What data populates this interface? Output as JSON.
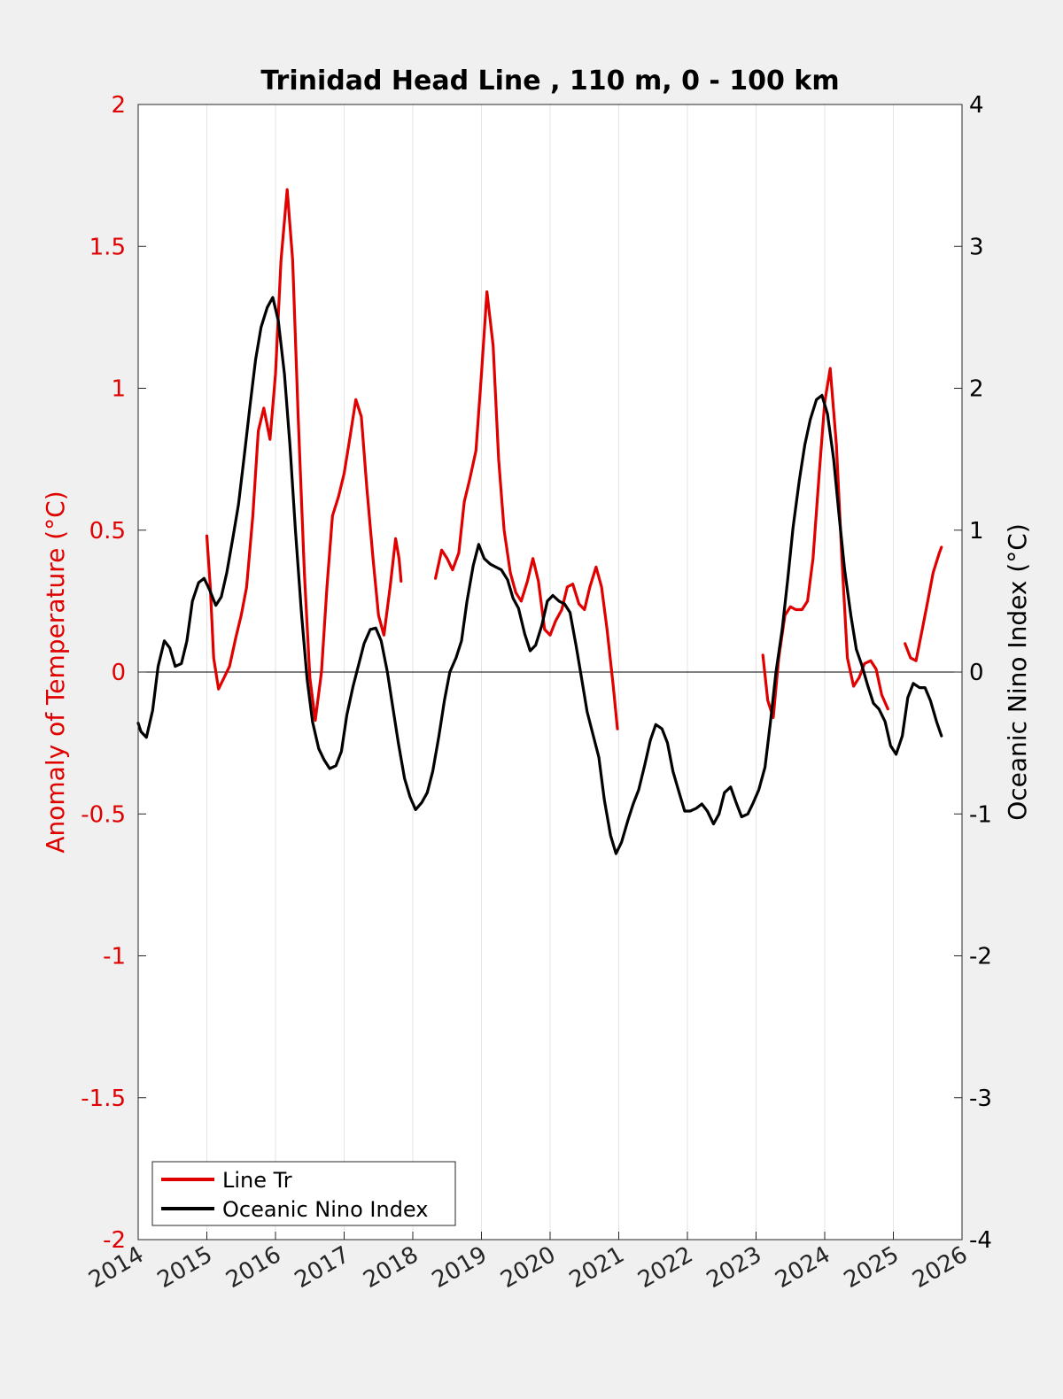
{
  "chart_data": {
    "type": "line",
    "title": "Trinidad Head Line , 110 m, 0 - 100 km",
    "xlabel": "",
    "ylabel_left": "Anomaly of Temperature (°C)",
    "ylabel_right": "Oceanic Nino Index (°C)",
    "xlim": [
      2014,
      2026
    ],
    "ylim_left": [
      -2,
      2
    ],
    "ylim_right": [
      -4,
      4
    ],
    "x_ticks": [
      "2014",
      "2015",
      "2016",
      "2017",
      "2018",
      "2019",
      "2020",
      "2021",
      "2022",
      "2023",
      "2024",
      "2025",
      "2026"
    ],
    "y_ticks_left": [
      "2",
      "1.5",
      "1",
      "0.5",
      "0",
      "-0.5",
      "-1",
      "-1.5",
      "-2"
    ],
    "y_ticks_right": [
      "4",
      "3",
      "2",
      "1",
      "0",
      "-1",
      "-2",
      "-3",
      "-4"
    ],
    "grid": "vertical",
    "zero_line": true,
    "legend_position": "bottom-left",
    "colors": {
      "line_tr": "#e00000",
      "oni": "#000000",
      "left_axis": "#e00000",
      "right_axis": "#000000",
      "background": "#f0f0f0",
      "plot_bg": "#ffffff"
    },
    "series": [
      {
        "name": "Line Tr",
        "axis": "left",
        "segments": [
          [
            [
              2015.0,
              0.48
            ],
            [
              2015.05,
              0.3
            ],
            [
              2015.1,
              0.05
            ],
            [
              2015.17,
              -0.06
            ],
            [
              2015.25,
              -0.02
            ],
            [
              2015.33,
              0.02
            ],
            [
              2015.42,
              0.12
            ],
            [
              2015.5,
              0.2
            ],
            [
              2015.58,
              0.3
            ],
            [
              2015.67,
              0.55
            ],
            [
              2015.75,
              0.85
            ],
            [
              2015.83,
              0.93
            ],
            [
              2015.92,
              0.82
            ],
            [
              2016.0,
              1.05
            ],
            [
              2016.08,
              1.45
            ],
            [
              2016.17,
              1.7
            ],
            [
              2016.25,
              1.45
            ],
            [
              2016.33,
              0.9
            ],
            [
              2016.42,
              0.35
            ],
            [
              2016.5,
              -0.02
            ],
            [
              2016.58,
              -0.17
            ],
            [
              2016.67,
              0.0
            ],
            [
              2016.75,
              0.3
            ],
            [
              2016.83,
              0.55
            ],
            [
              2016.92,
              0.62
            ],
            [
              2017.0,
              0.7
            ],
            [
              2017.08,
              0.82
            ],
            [
              2017.17,
              0.96
            ],
            [
              2017.25,
              0.9
            ],
            [
              2017.33,
              0.65
            ],
            [
              2017.42,
              0.4
            ],
            [
              2017.5,
              0.2
            ],
            [
              2017.58,
              0.13
            ],
            [
              2017.67,
              0.3
            ],
            [
              2017.75,
              0.47
            ],
            [
              2017.8,
              0.4
            ],
            [
              2017.83,
              0.32
            ]
          ],
          [
            [
              2018.33,
              0.33
            ],
            [
              2018.42,
              0.43
            ],
            [
              2018.5,
              0.4
            ],
            [
              2018.58,
              0.36
            ],
            [
              2018.67,
              0.42
            ],
            [
              2018.75,
              0.6
            ],
            [
              2018.83,
              0.68
            ],
            [
              2018.92,
              0.78
            ],
            [
              2019.0,
              1.05
            ],
            [
              2019.08,
              1.34
            ],
            [
              2019.17,
              1.15
            ],
            [
              2019.25,
              0.75
            ],
            [
              2019.33,
              0.5
            ],
            [
              2019.42,
              0.35
            ],
            [
              2019.5,
              0.28
            ],
            [
              2019.58,
              0.25
            ],
            [
              2019.67,
              0.32
            ],
            [
              2019.75,
              0.4
            ],
            [
              2019.83,
              0.32
            ],
            [
              2019.92,
              0.15
            ],
            [
              2020.0,
              0.13
            ],
            [
              2020.08,
              0.18
            ],
            [
              2020.17,
              0.22
            ],
            [
              2020.25,
              0.3
            ],
            [
              2020.33,
              0.31
            ],
            [
              2020.42,
              0.24
            ],
            [
              2020.5,
              0.22
            ],
            [
              2020.58,
              0.3
            ],
            [
              2020.67,
              0.37
            ],
            [
              2020.75,
              0.3
            ],
            [
              2020.83,
              0.15
            ],
            [
              2020.92,
              -0.05
            ],
            [
              2020.98,
              -0.2
            ]
          ],
          [
            [
              2023.1,
              0.06
            ],
            [
              2023.17,
              -0.1
            ],
            [
              2023.25,
              -0.16
            ],
            [
              2023.33,
              0.05
            ],
            [
              2023.42,
              0.2
            ],
            [
              2023.5,
              0.23
            ],
            [
              2023.58,
              0.22
            ],
            [
              2023.67,
              0.22
            ],
            [
              2023.75,
              0.25
            ],
            [
              2023.83,
              0.4
            ],
            [
              2023.92,
              0.7
            ],
            [
              2024.0,
              0.95
            ],
            [
              2024.08,
              1.07
            ],
            [
              2024.17,
              0.8
            ],
            [
              2024.25,
              0.4
            ],
            [
              2024.33,
              0.05
            ],
            [
              2024.42,
              -0.05
            ],
            [
              2024.5,
              -0.02
            ],
            [
              2024.58,
              0.03
            ],
            [
              2024.67,
              0.04
            ],
            [
              2024.75,
              0.01
            ],
            [
              2024.83,
              -0.08
            ],
            [
              2024.92,
              -0.13
            ]
          ],
          [
            [
              2025.17,
              0.1
            ],
            [
              2025.25,
              0.05
            ],
            [
              2025.33,
              0.04
            ],
            [
              2025.42,
              0.15
            ],
            [
              2025.5,
              0.25
            ],
            [
              2025.58,
              0.35
            ],
            [
              2025.67,
              0.42
            ],
            [
              2025.7,
              0.44
            ]
          ]
        ]
      },
      {
        "name": "Oceanic Nino Index",
        "axis": "right",
        "segments": [
          [
            [
              2014.0,
              -0.36
            ],
            [
              2014.04,
              -0.42
            ],
            [
              2014.12,
              -0.46
            ],
            [
              2014.21,
              -0.27
            ],
            [
              2014.29,
              0.04
            ],
            [
              2014.38,
              0.22
            ],
            [
              2014.46,
              0.17
            ],
            [
              2014.54,
              0.04
            ],
            [
              2014.63,
              0.06
            ],
            [
              2014.71,
              0.22
            ],
            [
              2014.79,
              0.5
            ],
            [
              2014.88,
              0.63
            ],
            [
              2014.96,
              0.66
            ],
            [
              2015.04,
              0.58
            ],
            [
              2015.13,
              0.47
            ],
            [
              2015.21,
              0.53
            ],
            [
              2015.29,
              0.7
            ],
            [
              2015.38,
              0.95
            ],
            [
              2015.46,
              1.18
            ],
            [
              2015.54,
              1.5
            ],
            [
              2015.63,
              1.88
            ],
            [
              2015.71,
              2.2
            ],
            [
              2015.79,
              2.43
            ],
            [
              2015.88,
              2.57
            ],
            [
              2015.96,
              2.64
            ],
            [
              2016.04,
              2.48
            ],
            [
              2016.13,
              2.1
            ],
            [
              2016.21,
              1.6
            ],
            [
              2016.29,
              1.0
            ],
            [
              2016.38,
              0.4
            ],
            [
              2016.46,
              -0.05
            ],
            [
              2016.54,
              -0.35
            ],
            [
              2016.63,
              -0.54
            ],
            [
              2016.71,
              -0.62
            ],
            [
              2016.79,
              -0.68
            ],
            [
              2016.88,
              -0.66
            ],
            [
              2016.96,
              -0.56
            ],
            [
              2017.04,
              -0.3
            ],
            [
              2017.13,
              -0.1
            ],
            [
              2017.21,
              0.05
            ],
            [
              2017.29,
              0.2
            ],
            [
              2017.38,
              0.3
            ],
            [
              2017.46,
              0.31
            ],
            [
              2017.54,
              0.22
            ],
            [
              2017.63,
              0.0
            ],
            [
              2017.71,
              -0.25
            ],
            [
              2017.79,
              -0.5
            ],
            [
              2017.88,
              -0.75
            ],
            [
              2017.96,
              -0.88
            ],
            [
              2018.04,
              -0.97
            ],
            [
              2018.13,
              -0.92
            ],
            [
              2018.21,
              -0.85
            ],
            [
              2018.29,
              -0.7
            ],
            [
              2018.38,
              -0.45
            ],
            [
              2018.46,
              -0.2
            ],
            [
              2018.54,
              0.0
            ],
            [
              2018.63,
              0.1
            ],
            [
              2018.71,
              0.22
            ],
            [
              2018.79,
              0.5
            ],
            [
              2018.88,
              0.75
            ],
            [
              2018.96,
              0.9
            ],
            [
              2019.04,
              0.8
            ],
            [
              2019.13,
              0.76
            ],
            [
              2019.21,
              0.74
            ],
            [
              2019.29,
              0.72
            ],
            [
              2019.38,
              0.65
            ],
            [
              2019.46,
              0.52
            ],
            [
              2019.54,
              0.45
            ],
            [
              2019.63,
              0.27
            ],
            [
              2019.71,
              0.15
            ],
            [
              2019.79,
              0.19
            ],
            [
              2019.88,
              0.33
            ],
            [
              2019.96,
              0.5
            ],
            [
              2020.04,
              0.54
            ],
            [
              2020.13,
              0.5
            ],
            [
              2020.21,
              0.48
            ],
            [
              2020.29,
              0.42
            ],
            [
              2020.38,
              0.18
            ],
            [
              2020.46,
              -0.05
            ],
            [
              2020.54,
              -0.28
            ],
            [
              2020.63,
              -0.45
            ],
            [
              2020.71,
              -0.6
            ],
            [
              2020.79,
              -0.9
            ],
            [
              2020.88,
              -1.15
            ],
            [
              2020.96,
              -1.28
            ],
            [
              2021.04,
              -1.2
            ],
            [
              2021.13,
              -1.05
            ],
            [
              2021.21,
              -0.93
            ],
            [
              2021.29,
              -0.83
            ],
            [
              2021.38,
              -0.65
            ],
            [
              2021.46,
              -0.48
            ],
            [
              2021.54,
              -0.37
            ],
            [
              2021.63,
              -0.4
            ],
            [
              2021.71,
              -0.5
            ],
            [
              2021.79,
              -0.7
            ],
            [
              2021.88,
              -0.85
            ],
            [
              2021.96,
              -0.98
            ],
            [
              2022.04,
              -0.98
            ],
            [
              2022.13,
              -0.96
            ],
            [
              2022.21,
              -0.93
            ],
            [
              2022.29,
              -0.98
            ],
            [
              2022.38,
              -1.07
            ],
            [
              2022.46,
              -1.0
            ],
            [
              2022.54,
              -0.85
            ],
            [
              2022.63,
              -0.81
            ],
            [
              2022.71,
              -0.92
            ],
            [
              2022.79,
              -1.02
            ],
            [
              2022.88,
              -1.0
            ],
            [
              2022.96,
              -0.92
            ],
            [
              2023.04,
              -0.83
            ],
            [
              2023.13,
              -0.67
            ],
            [
              2023.21,
              -0.35
            ],
            [
              2023.29,
              0.0
            ],
            [
              2023.38,
              0.3
            ],
            [
              2023.46,
              0.65
            ],
            [
              2023.54,
              1.02
            ],
            [
              2023.63,
              1.35
            ],
            [
              2023.71,
              1.6
            ],
            [
              2023.79,
              1.78
            ],
            [
              2023.88,
              1.92
            ],
            [
              2023.96,
              1.95
            ],
            [
              2024.04,
              1.82
            ],
            [
              2024.13,
              1.5
            ],
            [
              2024.21,
              1.1
            ],
            [
              2024.29,
              0.72
            ],
            [
              2024.38,
              0.4
            ],
            [
              2024.46,
              0.16
            ],
            [
              2024.54,
              0.05
            ],
            [
              2024.63,
              -0.1
            ],
            [
              2024.71,
              -0.22
            ],
            [
              2024.79,
              -0.26
            ],
            [
              2024.88,
              -0.35
            ],
            [
              2024.96,
              -0.52
            ],
            [
              2025.04,
              -0.58
            ],
            [
              2025.13,
              -0.45
            ],
            [
              2025.21,
              -0.18
            ],
            [
              2025.29,
              -0.08
            ],
            [
              2025.38,
              -0.11
            ],
            [
              2025.46,
              -0.11
            ],
            [
              2025.54,
              -0.2
            ],
            [
              2025.63,
              -0.35
            ],
            [
              2025.7,
              -0.45
            ]
          ]
        ]
      }
    ]
  },
  "legend": {
    "items": [
      {
        "label": "Line Tr",
        "color": "#e00000"
      },
      {
        "label": "Oceanic Nino Index",
        "color": "#000000"
      }
    ]
  }
}
